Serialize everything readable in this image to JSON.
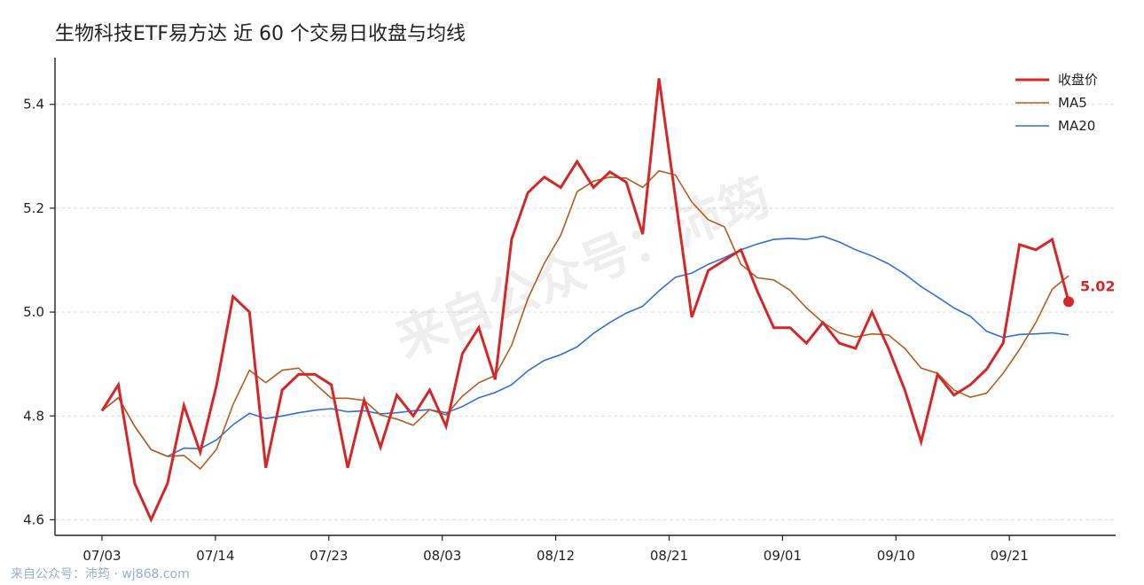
{
  "chart_data": {
    "type": "line",
    "title": "生物科技ETF易方达 近 60 个交易日收盘与均线",
    "x": [
      "07/03",
      "07/04",
      "07/07",
      "07/08",
      "07/09",
      "07/10",
      "07/11",
      "07/14",
      "07/15",
      "07/16",
      "07/17",
      "07/18",
      "07/21",
      "07/22",
      "07/23",
      "07/24",
      "07/25",
      "07/28",
      "07/29",
      "07/30",
      "07/31",
      "08/01",
      "08/04",
      "08/05",
      "08/06",
      "08/07",
      "08/08",
      "08/11",
      "08/12",
      "08/13",
      "08/14",
      "08/15",
      "08/18",
      "08/19",
      "08/20",
      "08/21",
      "08/22",
      "08/25",
      "08/26",
      "08/27",
      "08/28",
      "08/29",
      "09/01",
      "09/02",
      "09/03",
      "09/04",
      "09/05",
      "09/08",
      "09/09",
      "09/10",
      "09/11",
      "09/12",
      "09/15",
      "09/16",
      "09/17",
      "09/18",
      "09/19",
      "09/22",
      "09/23",
      "09/24"
    ],
    "xticks": [
      "07/03",
      "07/14",
      "07/23",
      "08/03",
      "08/12",
      "08/21",
      "09/01",
      "09/10",
      "09/21"
    ],
    "xtick_positions": [
      0,
      9,
      18,
      27,
      36,
      45,
      54,
      63,
      72
    ],
    "x_positions": [
      0,
      1.3,
      2.6,
      3.9,
      5.2,
      6.5,
      7.8,
      9.1,
      10.4,
      11.7,
      13,
      14.3,
      15.6,
      16.9,
      18.2,
      19.5,
      20.8,
      22.1,
      23.4,
      24.7,
      26,
      27.3,
      28.6,
      29.9,
      31.2,
      32.5,
      33.8,
      35.1,
      36.4,
      37.7,
      39,
      40.3,
      41.6,
      42.9,
      44.2,
      45.5,
      46.8,
      48.1,
      49.4,
      50.7,
      52,
      53.3,
      54.6,
      55.9,
      57.2,
      58.5,
      59.8,
      61.1,
      62.4,
      63.7,
      65,
      66.3,
      67.6,
      68.9,
      70.2,
      71.5,
      72.8,
      74.1,
      75.4,
      76.7
    ],
    "ylim": [
      4.57,
      5.49
    ],
    "yticks": [
      "4.6",
      "4.8",
      "5.0",
      "5.2",
      "5.4"
    ],
    "grid": "horizontal-dashed",
    "legend_position": "top-right",
    "series": [
      {
        "name": "收盘价",
        "color": "#d62728",
        "width": 3,
        "values": [
          4.81,
          4.86,
          4.67,
          4.6,
          4.67,
          4.82,
          4.73,
          4.86,
          5.03,
          5.0,
          4.7,
          4.85,
          4.88,
          4.88,
          4.86,
          4.7,
          4.83,
          4.74,
          4.84,
          4.8,
          4.85,
          4.78,
          4.92,
          4.97,
          4.87,
          5.14,
          5.23,
          5.26,
          5.24,
          5.29,
          5.24,
          5.27,
          5.25,
          5.15,
          5.45,
          5.22,
          4.99,
          5.08,
          5.1,
          5.12,
          5.04,
          4.97,
          4.97,
          4.94,
          4.98,
          4.94,
          4.93,
          5.0,
          4.93,
          4.85,
          4.75,
          4.88,
          4.84,
          4.86,
          4.89,
          4.94,
          5.13,
          5.12,
          5.14,
          5.02
        ]
      },
      {
        "name": "MA5",
        "color": "#b85c1a",
        "width": 1.6,
        "values": [
          4.81,
          4.835,
          4.78,
          4.735,
          4.722,
          4.724,
          4.698,
          4.736,
          4.822,
          4.888,
          4.864,
          4.888,
          4.892,
          4.862,
          4.834,
          4.834,
          4.83,
          4.802,
          4.794,
          4.782,
          4.812,
          4.802,
          4.838,
          4.864,
          4.878,
          4.936,
          5.026,
          5.094,
          5.148,
          5.232,
          5.252,
          5.26,
          5.258,
          5.24,
          5.272,
          5.264,
          5.212,
          5.178,
          5.164,
          5.092,
          5.066,
          5.062,
          5.042,
          5.008,
          4.98,
          4.96,
          4.952,
          4.958,
          4.956,
          4.93,
          4.892,
          4.882,
          4.85,
          4.836,
          4.844,
          4.882,
          4.928,
          4.98,
          5.044,
          5.07
        ]
      },
      {
        "name": "MA20",
        "color": "#2f6fe0",
        "width": 1.6,
        "values": [
          4.81,
          4.835,
          4.78,
          4.735,
          4.722,
          4.738,
          4.737,
          4.754,
          4.783,
          4.805,
          4.795,
          4.8,
          4.806,
          4.811,
          4.814,
          4.808,
          4.81,
          4.804,
          4.806,
          4.81,
          4.812,
          4.806,
          4.818,
          4.835,
          4.845,
          4.86,
          4.887,
          4.907,
          4.918,
          4.933,
          4.959,
          4.98,
          4.998,
          5.011,
          5.041,
          5.067,
          5.075,
          5.092,
          5.105,
          5.12,
          5.131,
          5.14,
          5.142,
          5.14,
          5.146,
          5.135,
          5.12,
          5.108,
          5.093,
          5.073,
          5.049,
          5.029,
          5.008,
          4.992,
          4.963,
          4.951,
          4.957,
          4.958,
          4.96,
          4.956
        ]
      }
    ],
    "end_label": "5.02"
  },
  "watermark": "来自公众号：沛筠",
  "footer": "来自公众号：沛筠 · wj868.com"
}
